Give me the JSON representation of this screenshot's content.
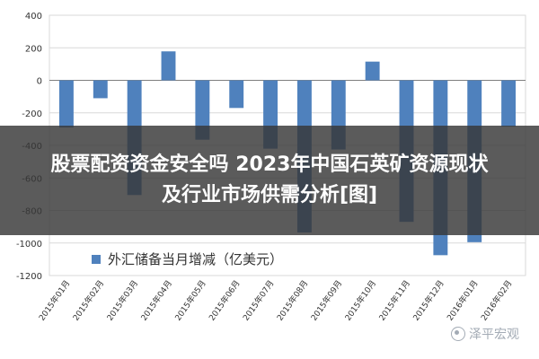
{
  "overlay": {
    "title_line1": "股票配资资金安全吗 2023年中国石英矿资源现状",
    "title_line2": "及行业市场供需分析[图]"
  },
  "watermark": {
    "text": "泽平宏观",
    "icon": "wechat-icon"
  },
  "colors": {
    "bar": "#4f81bd",
    "grid": "#d9d9d9",
    "axis": "#7f7f7f",
    "overlay": "#373737"
  },
  "chart_data": {
    "type": "bar",
    "title": "",
    "xlabel": "",
    "ylabel": "",
    "ylim": [
      -1200,
      400
    ],
    "yticks": [
      400,
      200,
      0,
      -200,
      -400,
      -600,
      -800,
      -1000,
      -1200
    ],
    "grid": true,
    "legend_position": "bottom-left",
    "categories": [
      "2015年01月",
      "2015年02月",
      "2015年03月",
      "2015年04月",
      "2015年05月",
      "2015年06月",
      "2015年07月",
      "2015年08月",
      "2015年09月",
      "2015年10月",
      "2015年11月",
      "2015年12月",
      "2016年01月",
      "2016年02月"
    ],
    "series": [
      {
        "name": "外汇储备当月增减（亿美元）",
        "values": [
          -290,
          -110,
          -705,
          178,
          -365,
          -170,
          -420,
          -935,
          -425,
          115,
          -870,
          -1075,
          -995,
          -285
        ]
      }
    ]
  }
}
